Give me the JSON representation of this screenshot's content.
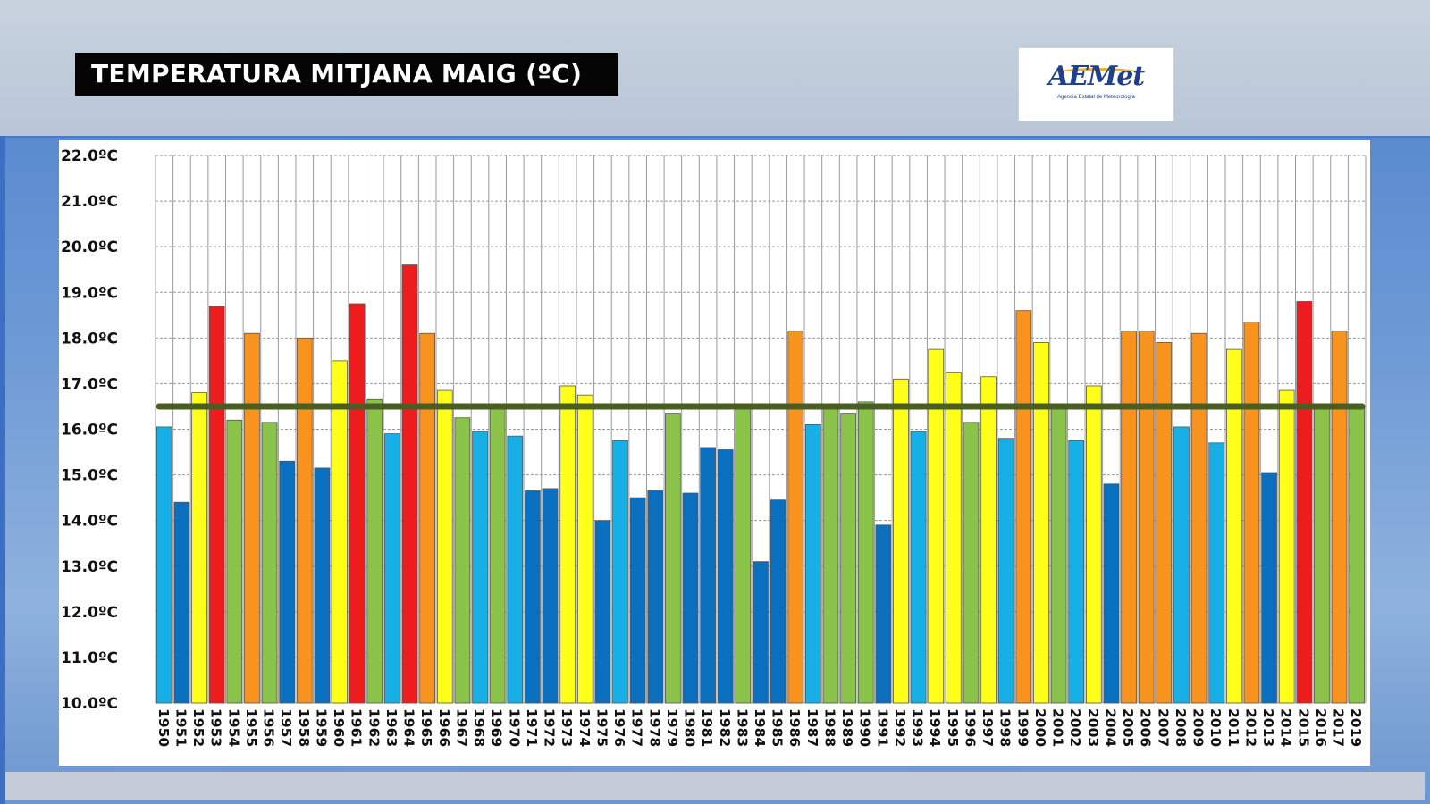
{
  "header": {
    "title": "TEMPERATURA MITJANA MAIG (ºC)",
    "logo_text": "AEMet",
    "logo_subtitle": "Agencia Estatal de Meteorología"
  },
  "chart_data": {
    "type": "bar",
    "title": "TEMPERATURA MITJANA MAIG (ºC)",
    "xlabel": "",
    "ylabel": "",
    "ylim": [
      10,
      22
    ],
    "yticks": [
      "10.0ºC",
      "11.0ºC",
      "12.0ºC",
      "13.0ºC",
      "14.0ºC",
      "15.0ºC",
      "16.0ºC",
      "17.0ºC",
      "18.0ºC",
      "19.0ºC",
      "20.0ºC",
      "21.0ºC",
      "22.0ºC"
    ],
    "grid": true,
    "reference_line": 16.5,
    "reference_line_color": "#4a5d23",
    "colors": {
      "very_cold": "#0b6fbf",
      "cold": "#17b0e6",
      "normal": "#8bc34a",
      "warm": "#ffff1a",
      "very_warm": "#f7931e",
      "extremely_warm": "#ee1c1c"
    },
    "categories": [
      "1950",
      "1951",
      "1952",
      "1953",
      "1954",
      "1955",
      "1956",
      "1957",
      "1958",
      "1959",
      "1960",
      "1961",
      "1962",
      "1963",
      "1964",
      "1965",
      "1966",
      "1967",
      "1968",
      "1969",
      "1970",
      "1971",
      "1972",
      "1973",
      "1974",
      "1975",
      "1976",
      "1977",
      "1978",
      "1979",
      "1980",
      "1981",
      "1982",
      "1983",
      "1984",
      "1985",
      "1986",
      "1987",
      "1988",
      "1989",
      "1990",
      "1991",
      "1992",
      "1993",
      "1994",
      "1995",
      "1996",
      "1997",
      "1998",
      "1999",
      "2000",
      "2001",
      "2002",
      "2003",
      "2004",
      "2005",
      "2006",
      "2007",
      "2008",
      "2009",
      "2010",
      "2011",
      "2012",
      "2013",
      "2014",
      "2015",
      "2016",
      "2017",
      "2019"
    ],
    "values": [
      16.05,
      14.4,
      16.8,
      18.7,
      16.2,
      18.1,
      16.15,
      15.3,
      18.0,
      15.15,
      17.5,
      18.75,
      16.65,
      15.9,
      19.6,
      18.1,
      16.85,
      16.25,
      15.95,
      16.5,
      15.85,
      14.65,
      14.7,
      16.95,
      16.75,
      14.0,
      15.75,
      14.5,
      14.65,
      16.35,
      14.6,
      15.6,
      15.55,
      16.45,
      13.1,
      14.45,
      18.15,
      16.1,
      16.45,
      16.35,
      16.6,
      13.9,
      17.1,
      15.95,
      17.75,
      17.25,
      16.15,
      17.15,
      15.8,
      18.6,
      17.9,
      16.55,
      15.75,
      16.95,
      14.8,
      18.15,
      18.15,
      17.9,
      16.05,
      18.1,
      15.7,
      17.75,
      18.35,
      15.05,
      16.85,
      18.8,
      16.5,
      18.15,
      16.5
    ],
    "bar_classes": [
      "cold",
      "very_cold",
      "warm",
      "extremely_warm",
      "normal",
      "very_warm",
      "normal",
      "very_cold",
      "very_warm",
      "very_cold",
      "warm",
      "extremely_warm",
      "normal",
      "cold",
      "extremely_warm",
      "very_warm",
      "warm",
      "normal",
      "cold",
      "normal",
      "cold",
      "very_cold",
      "very_cold",
      "warm",
      "warm",
      "very_cold",
      "cold",
      "very_cold",
      "very_cold",
      "normal",
      "very_cold",
      "very_cold",
      "very_cold",
      "normal",
      "very_cold",
      "very_cold",
      "very_warm",
      "cold",
      "normal",
      "normal",
      "normal",
      "very_cold",
      "warm",
      "cold",
      "warm",
      "warm",
      "normal",
      "warm",
      "cold",
      "very_warm",
      "warm",
      "normal",
      "cold",
      "warm",
      "very_cold",
      "very_warm",
      "very_warm",
      "very_warm",
      "cold",
      "very_warm",
      "cold",
      "warm",
      "very_warm",
      "very_cold",
      "warm",
      "extremely_warm",
      "normal",
      "very_warm",
      "normal"
    ]
  }
}
